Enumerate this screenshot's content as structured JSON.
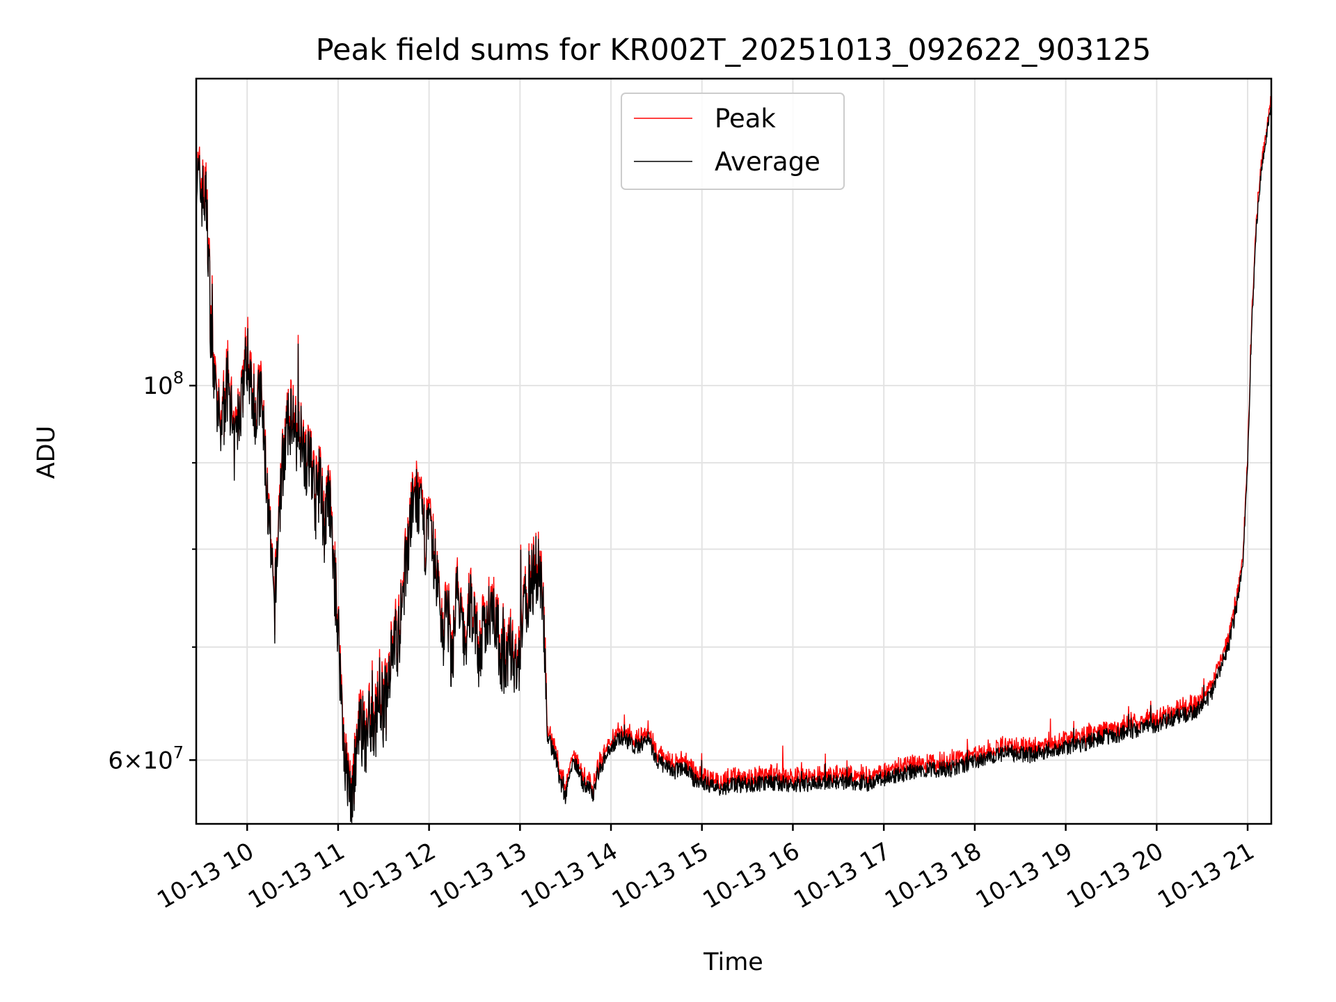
{
  "chart_data": {
    "type": "line",
    "title": "Peak field sums for KR002T_20251013_092622_903125",
    "xlabel": "Time",
    "ylabel": "ADU",
    "yscale": "log",
    "ylim": [
      55000000,
      152000000
    ],
    "xlim_hours": [
      9.44,
      21.26
    ],
    "grid": true,
    "legend_position": "upper center",
    "x_ticks": [
      {
        "hour": 10,
        "label": "10-13 10"
      },
      {
        "hour": 11,
        "label": "10-13 11"
      },
      {
        "hour": 12,
        "label": "10-13 12"
      },
      {
        "hour": 13,
        "label": "10-13 13"
      },
      {
        "hour": 14,
        "label": "10-13 14"
      },
      {
        "hour": 15,
        "label": "10-13 15"
      },
      {
        "hour": 16,
        "label": "10-13 16"
      },
      {
        "hour": 17,
        "label": "10-13 17"
      },
      {
        "hour": 18,
        "label": "10-13 18"
      },
      {
        "hour": 19,
        "label": "10-13 19"
      },
      {
        "hour": 20,
        "label": "10-13 20"
      },
      {
        "hour": 21,
        "label": "10-13 21"
      }
    ],
    "y_major_ticks": [
      {
        "value": 60000000,
        "base": "6",
        "sep": "×",
        "mant": "10",
        "exp": "7"
      },
      {
        "value": 100000000,
        "base": "",
        "sep": "",
        "mant": "10",
        "exp": "8"
      }
    ],
    "y_minor_ticks": [
      70000000,
      80000000,
      90000000
    ],
    "series": [
      {
        "name": "Peak",
        "color": "#ff0000",
        "anchors": [
          [
            9.44,
            133000000
          ],
          [
            9.5,
            130000000
          ],
          [
            9.55,
            128000000
          ],
          [
            9.58,
            118000000
          ],
          [
            9.6,
            108000000
          ],
          [
            9.65,
            98000000
          ],
          [
            9.7,
            94000000
          ],
          [
            9.75,
            97000000
          ],
          [
            9.8,
            101000000
          ],
          [
            9.85,
            91000000
          ],
          [
            9.9,
            95000000
          ],
          [
            9.95,
            100000000
          ],
          [
            10.0,
            104000000
          ],
          [
            10.05,
            100000000
          ],
          [
            10.1,
            96000000
          ],
          [
            10.15,
            99000000
          ],
          [
            10.2,
            90000000
          ],
          [
            10.25,
            81000000
          ],
          [
            10.3,
            73000000
          ],
          [
            10.35,
            84000000
          ],
          [
            10.4,
            91000000
          ],
          [
            10.45,
            94000000
          ],
          [
            10.5,
            97000000
          ],
          [
            10.55,
            91000000
          ],
          [
            10.6,
            95000000
          ],
          [
            10.65,
            89000000
          ],
          [
            10.7,
            91000000
          ],
          [
            10.75,
            85000000
          ],
          [
            10.8,
            88000000
          ],
          [
            10.85,
            82000000
          ],
          [
            10.9,
            86000000
          ],
          [
            10.95,
            78000000
          ],
          [
            11.0,
            72000000
          ],
          [
            11.05,
            63000000
          ],
          [
            11.1,
            58000000
          ],
          [
            11.15,
            57000000
          ],
          [
            11.2,
            60000000
          ],
          [
            11.25,
            63000000
          ],
          [
            11.3,
            61000000
          ],
          [
            11.35,
            64000000
          ],
          [
            11.4,
            62000000
          ],
          [
            11.45,
            66000000
          ],
          [
            11.5,
            64000000
          ],
          [
            11.55,
            67000000
          ],
          [
            11.6,
            71000000
          ],
          [
            11.65,
            70000000
          ],
          [
            11.7,
            72000000
          ],
          [
            11.75,
            79000000
          ],
          [
            11.8,
            83000000
          ],
          [
            11.85,
            86000000
          ],
          [
            11.9,
            84000000
          ],
          [
            11.95,
            81000000
          ],
          [
            12.0,
            82000000
          ],
          [
            12.05,
            79000000
          ],
          [
            12.1,
            76000000
          ],
          [
            12.15,
            71000000
          ],
          [
            12.2,
            74000000
          ],
          [
            12.25,
            68000000
          ],
          [
            12.3,
            76000000
          ],
          [
            12.35,
            72000000
          ],
          [
            12.4,
            70000000
          ],
          [
            12.45,
            74000000
          ],
          [
            12.5,
            73000000
          ],
          [
            12.55,
            69000000
          ],
          [
            12.6,
            71000000
          ],
          [
            12.65,
            73000000
          ],
          [
            12.7,
            75000000
          ],
          [
            12.75,
            71000000
          ],
          [
            12.8,
            69000000
          ],
          [
            12.85,
            68000000
          ],
          [
            12.9,
            70000000
          ],
          [
            12.95,
            67000000
          ],
          [
            13.0,
            69000000
          ],
          [
            13.05,
            74000000
          ],
          [
            13.1,
            76000000
          ],
          [
            13.15,
            77000000
          ],
          [
            13.2,
            78000000
          ],
          [
            13.25,
            76000000
          ],
          [
            13.3,
            62000000
          ],
          [
            13.35,
            61000000
          ],
          [
            13.4,
            60000000
          ],
          [
            13.45,
            58000000
          ],
          [
            13.5,
            57000000
          ],
          [
            13.55,
            59000000
          ],
          [
            13.6,
            60000000
          ],
          [
            13.65,
            59000000
          ],
          [
            13.7,
            58000000
          ],
          [
            13.75,
            58000000
          ],
          [
            13.8,
            57000000
          ],
          [
            13.85,
            59000000
          ],
          [
            13.9,
            59500000
          ],
          [
            13.95,
            60500000
          ],
          [
            14.0,
            61000000
          ],
          [
            14.1,
            62000000
          ],
          [
            14.2,
            61500000
          ],
          [
            14.3,
            61000000
          ],
          [
            14.4,
            62000000
          ],
          [
            14.5,
            60000000
          ],
          [
            14.6,
            59500000
          ],
          [
            14.7,
            59000000
          ],
          [
            14.8,
            59500000
          ],
          [
            14.9,
            58500000
          ],
          [
            15.0,
            58200000
          ],
          [
            15.2,
            57800000
          ],
          [
            15.4,
            58000000
          ],
          [
            15.6,
            58100000
          ],
          [
            15.8,
            58200000
          ],
          [
            16.0,
            58000000
          ],
          [
            16.2,
            58100000
          ],
          [
            16.4,
            58200000
          ],
          [
            16.6,
            58300000
          ],
          [
            16.8,
            58100000
          ],
          [
            17.0,
            58500000
          ],
          [
            17.2,
            58900000
          ],
          [
            17.4,
            59100000
          ],
          [
            17.6,
            59200000
          ],
          [
            17.8,
            59400000
          ],
          [
            18.0,
            59800000
          ],
          [
            18.2,
            60300000
          ],
          [
            18.4,
            60600000
          ],
          [
            18.6,
            60400000
          ],
          [
            18.8,
            60800000
          ],
          [
            19.0,
            61000000
          ],
          [
            19.2,
            61400000
          ],
          [
            19.4,
            61900000
          ],
          [
            19.6,
            62100000
          ],
          [
            19.8,
            62600000
          ],
          [
            20.0,
            63000000
          ],
          [
            20.2,
            63600000
          ],
          [
            20.4,
            64000000
          ],
          [
            20.55,
            65000000
          ],
          [
            20.65,
            66500000
          ],
          [
            20.7,
            68000000
          ],
          [
            20.8,
            70500000
          ],
          [
            20.9,
            75000000
          ],
          [
            20.95,
            79000000
          ],
          [
            21.0,
            90000000
          ],
          [
            21.05,
            110000000
          ],
          [
            21.1,
            125000000
          ],
          [
            21.15,
            134000000
          ],
          [
            21.2,
            140000000
          ],
          [
            21.26,
            147000000
          ]
        ]
      },
      {
        "name": "Average",
        "color": "#000000"
      }
    ]
  }
}
